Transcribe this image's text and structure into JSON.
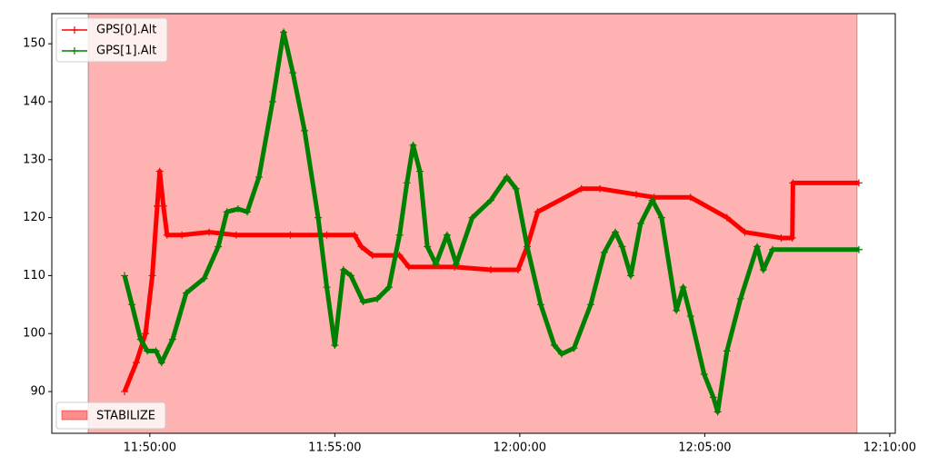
{
  "chart_data": {
    "type": "line",
    "xlim": [
      "11:47:21",
      "12:10:09"
    ],
    "xticks": [
      "11:50:00",
      "11:55:00",
      "12:00:00",
      "12:05:00",
      "12:10:00"
    ],
    "ylim": [
      82.8,
      155.2
    ],
    "yticks": [
      90,
      100,
      110,
      120,
      130,
      140,
      150
    ],
    "legend": "upper left",
    "spans": [
      {
        "name": "STABILIZE",
        "start": "11:48:20",
        "end": "12:09:07",
        "color": "#ff0000",
        "legend": "lower left"
      }
    ],
    "series": [
      {
        "name": "GPS[0].Alt",
        "color": "#ff0000",
        "x": [
          "11:49:19",
          "11:49:38",
          "11:49:53",
          "11:50:04",
          "11:50:12",
          "11:50:16",
          "11:50:22",
          "11:50:28",
          "11:50:52",
          "11:51:36",
          "11:52:20",
          "11:53:48",
          "11:54:47",
          "11:55:32",
          "11:55:43",
          "11:56:01",
          "11:56:45",
          "11:57:00",
          "11:58:14",
          "11:59:13",
          "11:59:57",
          "12:00:12",
          "12:00:29",
          "12:01:40",
          "12:02:10",
          "12:03:09",
          "12:03:38",
          "12:04:37",
          "12:05:36",
          "12:06:05",
          "12:07:04",
          "12:07:22",
          "12:07:23",
          "12:09:10"
        ],
        "values": [
          90,
          95,
          100,
          110,
          122,
          128,
          122,
          117,
          117,
          117.5,
          117,
          117,
          117,
          117,
          115,
          113.5,
          113.5,
          111.5,
          111.5,
          111,
          111,
          115,
          121,
          125,
          125,
          124,
          123.5,
          123.5,
          120,
          117.5,
          116.5,
          116.5,
          126,
          126
        ]
      },
      {
        "name": "GPS[1].Alt",
        "color": "#008000",
        "x": [
          "11:49:19",
          "11:49:31",
          "11:49:45",
          "11:49:56",
          "11:50:10",
          "11:50:19",
          "11:50:37",
          "11:50:59",
          "11:51:28",
          "11:51:51",
          "11:52:05",
          "11:52:23",
          "11:52:38",
          "11:52:57",
          "11:53:19",
          "11:53:37",
          "11:53:52",
          "11:54:11",
          "11:54:33",
          "11:54:47",
          "11:55:00",
          "11:55:14",
          "11:55:26",
          "11:55:46",
          "11:56:09",
          "11:56:28",
          "11:56:45",
          "11:56:57",
          "11:57:07",
          "11:57:18",
          "11:57:30",
          "11:57:44",
          "11:58:02",
          "11:58:17",
          "11:58:43",
          "11:59:13",
          "11:59:39",
          "11:59:54",
          "12:00:12",
          "12:00:34",
          "12:00:56",
          "12:01:08",
          "12:01:28",
          "12:01:55",
          "12:02:17",
          "12:02:35",
          "12:02:46",
          "12:03:00",
          "12:03:16",
          "12:03:35",
          "12:03:50",
          "12:04:14",
          "12:04:25",
          "12:04:37",
          "12:04:59",
          "12:05:14",
          "12:05:21",
          "12:05:36",
          "12:05:58",
          "12:06:25",
          "12:06:35",
          "12:06:50",
          "12:09:10"
        ],
        "values": [
          110,
          105,
          99,
          97,
          97,
          95,
          99,
          107,
          109.5,
          115,
          121,
          121.5,
          121,
          127,
          140,
          152,
          145,
          135,
          120,
          108,
          98,
          111,
          110,
          105.5,
          106,
          108,
          117,
          126,
          132.5,
          128,
          115,
          112,
          117,
          112,
          120,
          123,
          127,
          125,
          115,
          105,
          98,
          96.5,
          97.5,
          105,
          114,
          117.5,
          115,
          110,
          119,
          123,
          120,
          104,
          108,
          103,
          93,
          89,
          86.5,
          97,
          106,
          115,
          111,
          114.5,
          114.5
        ]
      }
    ]
  }
}
